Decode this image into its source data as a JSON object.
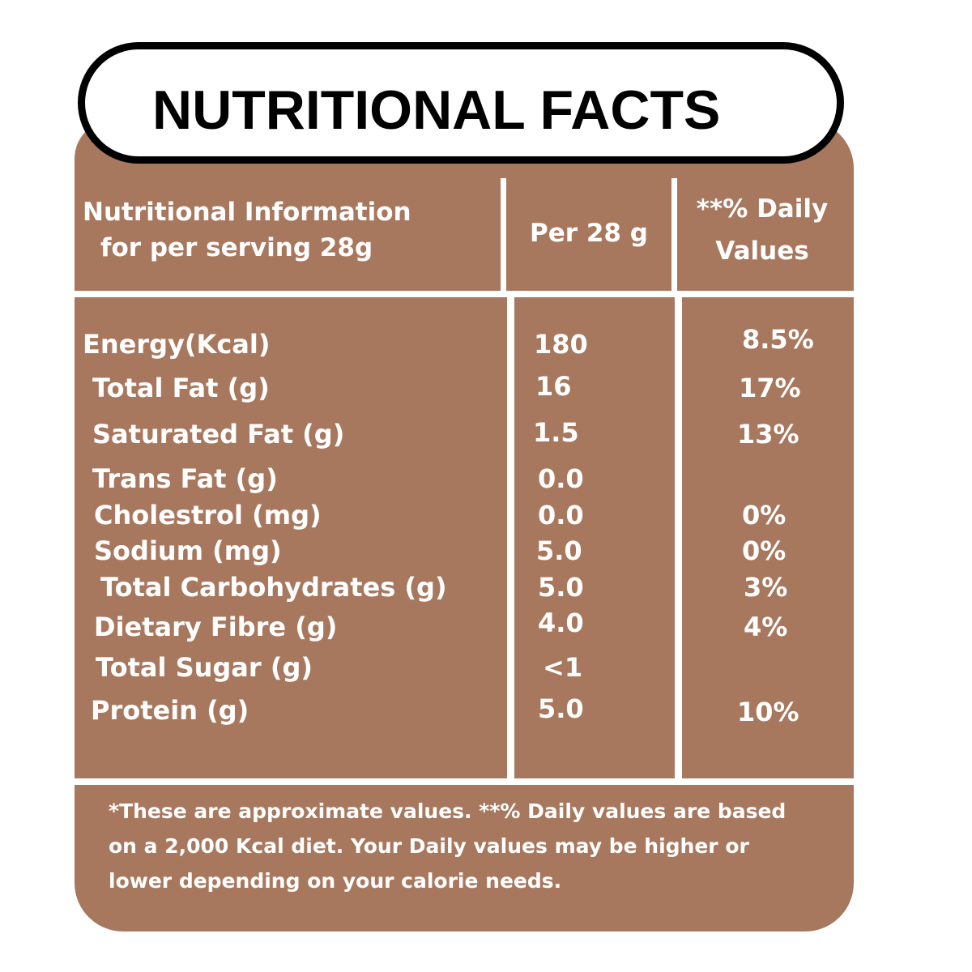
{
  "title": "NUTRITIONAL FACTS",
  "header": {
    "info_line1": "Nutritional Information",
    "info_line2": "for per serving 28g",
    "per_label": "Per 28 g",
    "dv_line1": "**% Daily",
    "dv_line2": "Values"
  },
  "rows": [
    {
      "label": "Energy(Kcal)",
      "per": "180",
      "dv": "8.5%"
    },
    {
      "label": "Total Fat (g)",
      "per": "16",
      "dv": "17%"
    },
    {
      "label": "Saturated Fat (g)",
      "per": "1.5",
      "dv": "13%"
    },
    {
      "label": "Trans Fat (g)",
      "per": "0.0",
      "dv": ""
    },
    {
      "label": "Cholestrol (mg)",
      "per": "0.0",
      "dv": "0%"
    },
    {
      "label": "Sodium (mg)",
      "per": "5.0",
      "dv": "0%"
    },
    {
      "label": "Total Carbohydrates (g)",
      "per": "5.0",
      "dv": "3%"
    },
    {
      "label": "Dietary Fibre (g)",
      "per": "4.0",
      "dv": "4%"
    },
    {
      "label": "Total Sugar (g)",
      "per": "<1",
      "dv": ""
    },
    {
      "label": "Protein (g)",
      "per": "5.0",
      "dv": "10%"
    }
  ],
  "footnote": {
    "line1": "*These are approximate values.  **% Daily values are based",
    "line2": "on a 2,000 Kcal diet. Your Daily values may be higher or",
    "line3": "lower depending on your calorie needs."
  },
  "colors": {
    "panel": "#a8785e",
    "text": "#ffffff",
    "title_text": "#000000"
  }
}
